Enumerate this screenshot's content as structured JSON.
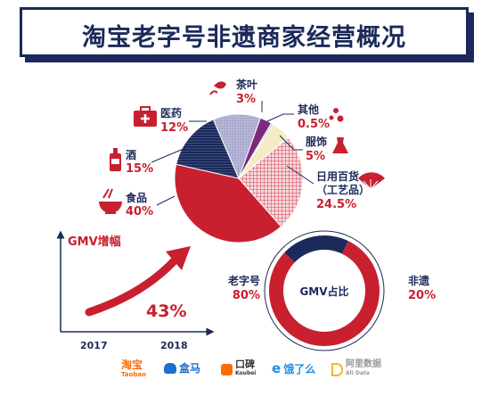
{
  "title": "淘宝老字号非遗商家经营概况",
  "chart_data": [
    {
      "type": "pie",
      "slices": [
        {
          "name": "食品",
          "value": 40,
          "label": "40%",
          "color": "#c8202f"
        },
        {
          "name": "酒",
          "value": 15,
          "label": "15%",
          "color": "#1b2a5a"
        },
        {
          "name": "医药",
          "value": 12,
          "label": "12%",
          "color": "#8f8fbd"
        },
        {
          "name": "茶叶",
          "value": 3,
          "label": "3%",
          "color": "#7b2a7b"
        },
        {
          "name": "其他",
          "value": 0.5,
          "label": "0.5%",
          "color": "#c0c0d8"
        },
        {
          "name": "服饰",
          "value": 5,
          "label": "5%",
          "color": "#f4ecc4"
        },
        {
          "name": "日用百货",
          "sub": "（工艺品）",
          "value": 24.5,
          "label": "24.5%",
          "color": "#f3c6cc"
        }
      ]
    },
    {
      "type": "line",
      "title": "GMV增幅",
      "categories": [
        "2017",
        "2018"
      ],
      "annotation": "43%"
    },
    {
      "type": "pie",
      "title": "GMV占比",
      "slices": [
        {
          "name": "老字号",
          "value": 80,
          "label": "80%",
          "color": "#c8202f"
        },
        {
          "name": "非遗",
          "value": 20,
          "label": "20%",
          "color": "#1b2a5a"
        }
      ]
    }
  ],
  "logos": [
    {
      "name": "淘宝",
      "sub": "Taobao",
      "color": "#ff6a00"
    },
    {
      "name": "盒马",
      "sub": "",
      "color": "#1b6fd1"
    },
    {
      "name": "口碑",
      "sub": "Koubei",
      "color": "#333333"
    },
    {
      "name": "饿了么",
      "sub": "",
      "color": "#1e8fe6"
    },
    {
      "name": "阿里数据",
      "sub": "Ali Data",
      "color": "#999999"
    }
  ]
}
